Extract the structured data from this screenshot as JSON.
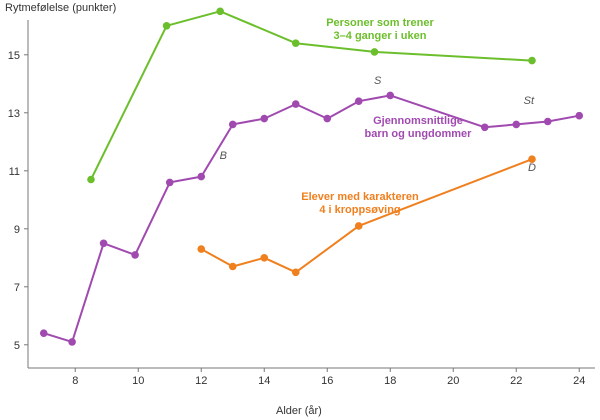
{
  "chart_data": {
    "type": "line",
    "xlabel": "Alder (år)",
    "ylabel": "Rytmefølelse (punkter)",
    "xlim": [
      6.5,
      24.5
    ],
    "ylim": [
      4.2,
      16.2
    ],
    "xticks": [
      6,
      8,
      10,
      12,
      14,
      16,
      18,
      20,
      22,
      24
    ],
    "yticks": [
      5,
      7,
      9,
      11,
      13,
      15
    ],
    "grid": false,
    "series": [
      {
        "name": "Personer som trener 3–4 ganger i uken",
        "label_lines": [
          "Personer som trener",
          "3–4 ganger i uken"
        ],
        "color": "#6cbf2c",
        "x": [
          8.5,
          10.9,
          12.6,
          15,
          17.5,
          22.5
        ],
        "y": [
          10.7,
          16.0,
          16.5,
          15.4,
          15.1,
          14.8
        ]
      },
      {
        "name": "Gjennomsnittlige barn og ungdommer",
        "label_lines": [
          "Gjennomsnittlige",
          "barn og ungdommer"
        ],
        "color": "#a04ab0",
        "x": [
          7,
          7.9,
          8.9,
          9.9,
          11,
          12,
          13,
          14,
          15,
          16,
          17,
          18,
          21,
          22,
          23,
          24
        ],
        "y": [
          5.4,
          5.1,
          8.5,
          8.1,
          10.6,
          10.8,
          12.6,
          12.8,
          13.3,
          12.8,
          13.4,
          13.6,
          12.5,
          12.6,
          12.7,
          12.9
        ]
      },
      {
        "name": "Elever med karakteren 4 i kroppsøving",
        "label_lines": [
          "Elever med karakteren",
          "4 i kroppsøving"
        ],
        "color": "#f07f1e",
        "x": [
          12,
          13,
          14,
          15,
          17,
          22.5
        ],
        "y": [
          8.3,
          7.7,
          8.0,
          7.5,
          9.1,
          11.4
        ]
      }
    ],
    "annotations": [
      {
        "text": "B",
        "x": 12.7,
        "y": 11.4
      },
      {
        "text": "S",
        "x": 17.6,
        "y": 14.0
      },
      {
        "text": "St",
        "x": 22.4,
        "y": 13.3
      },
      {
        "text": "D",
        "x": 22.5,
        "y": 11.0
      }
    ]
  }
}
